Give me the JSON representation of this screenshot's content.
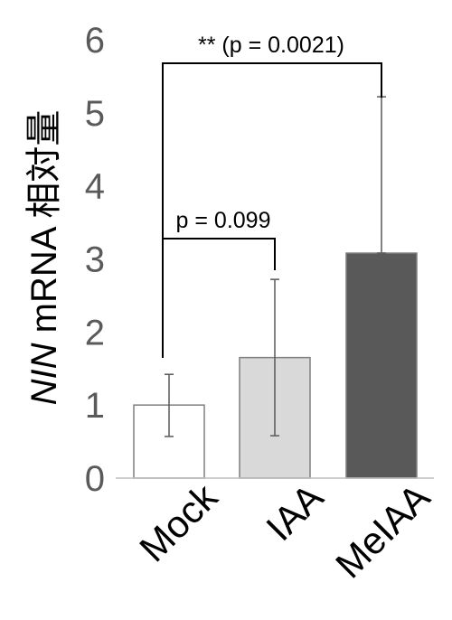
{
  "chart_data": {
    "type": "bar",
    "ylabel_gene": "NIN",
    "ylabel_rest": " mRNA 相対量",
    "categories": [
      "Mock",
      "IAA",
      "MeIAA"
    ],
    "values": [
      1.0,
      1.65,
      3.08
    ],
    "errors": [
      {
        "low": 0.57,
        "high": 1.42
      },
      {
        "low": 0.58,
        "high": 2.72
      },
      {
        "low": 3.08,
        "high": 5.22
      }
    ],
    "colors": [
      "#ffffff",
      "#d9d9d9",
      "#595959"
    ],
    "ylim": [
      0,
      6
    ],
    "yticks": [
      "0",
      "1",
      "2",
      "3",
      "4",
      "5",
      "6"
    ],
    "grid": false,
    "annotations": [
      {
        "text": "p = 0.099",
        "from": 0,
        "to": 1
      },
      {
        "text": "** (p = 0.0021)",
        "from": 0,
        "to": 2
      }
    ]
  }
}
